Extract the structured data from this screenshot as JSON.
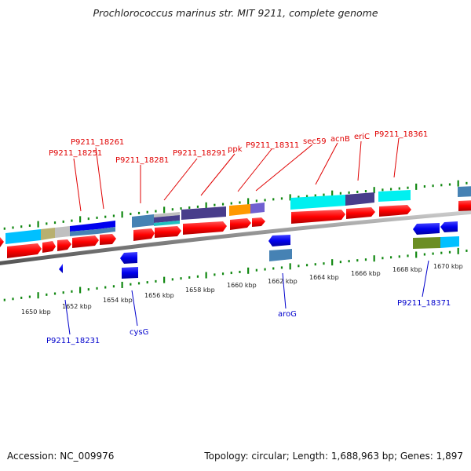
{
  "header": {
    "title": "Prochlorococcus marinus str. MIT 9211, complete genome"
  },
  "footer": {
    "accession": "Accession: NC_009976",
    "topology": "Topology: circular; Length: 1,688,963 bp; Genes: 1,897"
  },
  "genome_map": {
    "scale_unit": "kbp",
    "scale_labels": [
      "1650 kbp",
      "1652 kbp",
      "1654 kbp",
      "1656 kbp",
      "1658 kbp",
      "1660 kbp",
      "1662 kbp",
      "1664 kbp",
      "1666 kbp",
      "1668 kbp",
      "1670 kbp"
    ],
    "forward_gene_labels": [
      "P9211_18251",
      "P9211_18261",
      "P9211_18281",
      "P9211_18291",
      "ppk",
      "P9211_18311",
      "sec59",
      "acnB",
      "eriC",
      "P9211_18361"
    ],
    "reverse_gene_labels": [
      "P9211_18231",
      "cysG",
      "aroG",
      "P9211_18371"
    ],
    "colors": {
      "forward_label": "#e00000",
      "reverse_label": "#0000cc",
      "forward_cds": "#ff0000",
      "reverse_cds": "#0000ee",
      "backbone": "#999999",
      "ticks": "#118811"
    }
  }
}
